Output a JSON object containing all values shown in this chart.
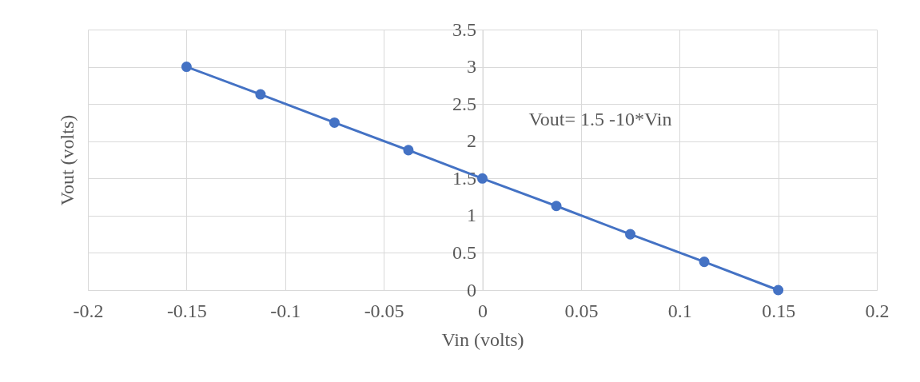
{
  "chart_data": {
    "type": "line",
    "xlabel": "Vin (volts)",
    "ylabel": "Vout (volts)",
    "x": [
      -0.15,
      -0.1125,
      -0.075,
      -0.0375,
      0,
      0.0375,
      0.075,
      0.1125,
      0.15
    ],
    "series": [
      {
        "color": "#4472c4",
        "values": [
          3,
          2.63,
          2.25,
          1.88,
          1.5,
          1.13,
          0.75,
          0.38,
          0
        ]
      }
    ],
    "xlim": [
      -0.2,
      0.2
    ],
    "xticks": [
      -0.2,
      -0.15,
      -0.1,
      -0.05,
      0,
      0.05,
      0.1,
      0.15,
      0.2
    ],
    "ylim": [
      0,
      3.5
    ],
    "yticks": [
      0,
      0.5,
      1,
      1.5,
      2,
      2.5,
      3,
      3.5
    ],
    "grid": true,
    "marker": "circle",
    "line_style": "solid",
    "legend": false,
    "annotations": [
      "Vout= 1.5 -10*Vin"
    ]
  }
}
